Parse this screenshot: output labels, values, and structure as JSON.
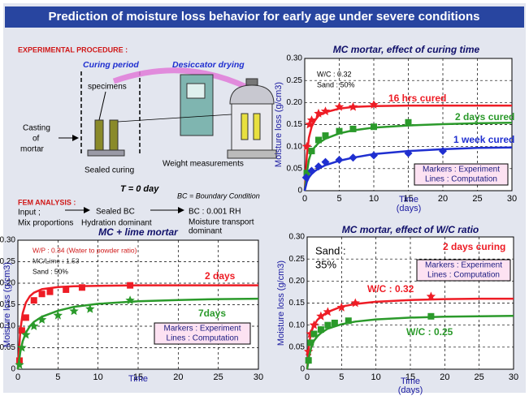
{
  "title": "Prediction of moisture loss behavior for early age under severe conditions",
  "diagram": {
    "procedure_heading": "EXPERIMENTAL PROCEDURE :",
    "curing_period": "Curing period",
    "desiccator_drying": "Desiccator drying",
    "specimens": "specimens",
    "casting": [
      "Casting",
      "of",
      "mortar"
    ],
    "sealed_curing": "Sealed curing",
    "weight_measurements": "Weight measurements",
    "start_time": "T = 0 day",
    "fem_heading": "FEM ANALYSIS :",
    "bc_definition": "BC = Boundary Condition",
    "input": [
      "Input ;",
      "Mix proportions"
    ],
    "stage_1": [
      "Sealed BC",
      "Hydration dominant"
    ],
    "stage_2": [
      "BC : 0.001 RH",
      "Moisture transport",
      "dominant"
    ]
  },
  "chart_data": [
    {
      "type": "scatter-line",
      "title": "MC mortar, effect of curing time",
      "ylabel": "Moisture loss (g/cm3)",
      "xlabel": [
        "Time",
        "(days)"
      ],
      "xlim": [
        0,
        30
      ],
      "xticks": [
        0,
        5,
        10,
        15,
        20,
        25,
        30
      ],
      "ylim": [
        0,
        0.3
      ],
      "yticks": [
        0,
        0.05,
        {
          "value": 0.1,
          "label": "0.10"
        },
        0.15,
        {
          "value": 0.2,
          "label": "0.20"
        },
        0.25,
        {
          "value": 0.3,
          "label": "0.30"
        }
      ],
      "grid": true,
      "notes": [
        "W/C : 0.32",
        "Sand : 50%"
      ],
      "legend": [
        "Markers : Experiment",
        "Lines :  Computation"
      ],
      "series": [
        {
          "name": "16 hrs cured",
          "color": "#ee1c25",
          "marker": "star",
          "x": [
            0.3,
            0.7,
            1,
            2,
            3,
            5,
            7,
            10
          ],
          "values": [
            0.1,
            0.15,
            0.16,
            0.175,
            0.18,
            0.19,
            0.19,
            0.195
          ],
          "fit_x": [
            0,
            0.3,
            0.6,
            1,
            1.5,
            2,
            3,
            5,
            7,
            10,
            15,
            20,
            25,
            30
          ],
          "fit_values": [
            0,
            0.08,
            0.12,
            0.145,
            0.16,
            0.17,
            0.178,
            0.186,
            0.19,
            0.192,
            0.193,
            0.193,
            0.193,
            0.193
          ]
        },
        {
          "name": "2 days cured",
          "color": "#2b9a2b",
          "marker": "square",
          "x": [
            0.3,
            1,
            2,
            3,
            5,
            7,
            10,
            15
          ],
          "values": [
            0.04,
            0.09,
            0.115,
            0.125,
            0.135,
            0.14,
            0.145,
            0.155
          ],
          "fit_x": [
            0,
            0.3,
            0.6,
            1,
            1.5,
            2,
            3,
            5,
            7,
            10,
            15,
            20,
            25,
            30
          ],
          "fit_values": [
            0,
            0.04,
            0.07,
            0.09,
            0.1,
            0.108,
            0.118,
            0.13,
            0.137,
            0.143,
            0.148,
            0.151,
            0.153,
            0.154
          ]
        },
        {
          "name": "1 week cured",
          "color": "#1f2fd0",
          "marker": "diamond",
          "x": [
            0.2,
            1,
            2,
            3,
            5,
            7,
            10,
            15,
            20
          ],
          "values": [
            0.03,
            0.045,
            0.055,
            0.065,
            0.07,
            0.075,
            0.08,
            0.085,
            0.09
          ],
          "fit_x": [
            0,
            0.3,
            0.6,
            1,
            1.5,
            2,
            3,
            5,
            7,
            10,
            15,
            20,
            25,
            30
          ],
          "fit_values": [
            0,
            0.02,
            0.03,
            0.038,
            0.045,
            0.05,
            0.058,
            0.068,
            0.075,
            0.083,
            0.09,
            0.094,
            0.097,
            0.098
          ]
        }
      ]
    },
    {
      "type": "scatter-line",
      "title": "MC + lime mortar",
      "ylabel": "Moisture loss (g/cm3)",
      "xlabel": [
        "Time"
      ],
      "xlim": [
        0,
        30
      ],
      "xticks": [
        0,
        5,
        10,
        15,
        20,
        25,
        30
      ],
      "ylim": [
        0,
        0.3
      ],
      "yticks": [
        0,
        0.05,
        {
          "value": 0.1,
          "label": "0.10"
        },
        0.15,
        {
          "value": 0.2,
          "label": "0.20"
        },
        0.25,
        {
          "value": 0.3,
          "label": "0.30"
        }
      ],
      "grid": true,
      "notes": [
        "W/P : 0.34 (Water to powder ratio)",
        "MC/Lime : 1.53",
        "Sand : 50%"
      ],
      "legend": [
        "Markers : Experiment",
        "Lines :  Computation"
      ],
      "series": [
        {
          "name": "2 days",
          "color": "#ee1c25",
          "marker": "square",
          "x": [
            0.2,
            0.5,
            1,
            2,
            3,
            4,
            6,
            8,
            14
          ],
          "values": [
            0.02,
            0.09,
            0.12,
            0.16,
            0.175,
            0.18,
            0.185,
            0.19,
            0.195
          ],
          "fit_x": [
            0,
            0.3,
            0.6,
            1,
            1.5,
            2,
            3,
            5,
            7,
            10,
            15,
            20,
            25,
            30
          ],
          "fit_values": [
            0,
            0.09,
            0.13,
            0.155,
            0.17,
            0.178,
            0.186,
            0.191,
            0.193,
            0.194,
            0.195,
            0.195,
            0.195,
            0.195
          ]
        },
        {
          "name": "7days",
          "color": "#2b9a2b",
          "marker": "star",
          "x": [
            0.2,
            0.5,
            1,
            2,
            3,
            5,
            7,
            9,
            14
          ],
          "values": [
            0.01,
            0.05,
            0.08,
            0.1,
            0.115,
            0.125,
            0.135,
            0.14,
            0.16
          ],
          "fit_x": [
            0,
            0.3,
            0.6,
            1,
            1.5,
            2,
            3,
            5,
            7,
            10,
            15,
            20,
            25,
            30
          ],
          "fit_values": [
            0,
            0.04,
            0.065,
            0.085,
            0.1,
            0.11,
            0.122,
            0.136,
            0.145,
            0.152,
            0.158,
            0.161,
            0.163,
            0.164
          ]
        }
      ]
    },
    {
      "type": "scatter-line",
      "title": "MC mortar, effect of W/C ratio",
      "ylabel": "Moisture loss (g/cm3)",
      "xlabel": [
        "Time",
        "(days)"
      ],
      "xlim": [
        0,
        30
      ],
      "xticks": [
        0,
        5,
        10,
        15,
        20,
        25,
        30
      ],
      "ylim": [
        0,
        0.3
      ],
      "yticks": [
        0,
        0.05,
        {
          "value": 0.1,
          "label": "0.10"
        },
        0.15,
        {
          "value": 0.2,
          "label": "0.20"
        },
        0.25,
        {
          "value": 0.3,
          "label": "0.30"
        }
      ],
      "grid": true,
      "notes": [
        "Sand :",
        "35%",
        "2 days curing"
      ],
      "legend": [
        "Markers : Experiment",
        "Lines :  Computation"
      ],
      "series": [
        {
          "name": "W/C : 0.32",
          "color": "#ee1c25",
          "marker": "star",
          "x": [
            0.2,
            0.5,
            1,
            2,
            3,
            5,
            7,
            18
          ],
          "values": [
            0.04,
            0.08,
            0.1,
            0.12,
            0.13,
            0.14,
            0.15,
            0.165
          ],
          "fit_x": [
            0,
            0.3,
            0.6,
            1,
            1.5,
            2,
            3,
            5,
            7,
            10,
            15,
            20,
            25,
            30
          ],
          "fit_values": [
            0,
            0.06,
            0.085,
            0.1,
            0.112,
            0.12,
            0.13,
            0.142,
            0.148,
            0.153,
            0.157,
            0.159,
            0.16,
            0.16
          ]
        },
        {
          "name": "W/C : 0.25",
          "color": "#2b9a2b",
          "marker": "square",
          "x": [
            0.2,
            0.5,
            1,
            2,
            3,
            4,
            6,
            18
          ],
          "values": [
            0.02,
            0.06,
            0.08,
            0.09,
            0.1,
            0.105,
            0.11,
            0.12
          ],
          "fit_x": [
            0,
            0.3,
            0.6,
            1,
            1.5,
            2,
            3,
            5,
            7,
            10,
            15,
            20,
            25,
            30
          ],
          "fit_values": [
            0,
            0.03,
            0.05,
            0.065,
            0.075,
            0.082,
            0.092,
            0.102,
            0.108,
            0.113,
            0.117,
            0.119,
            0.12,
            0.121
          ]
        }
      ]
    }
  ]
}
